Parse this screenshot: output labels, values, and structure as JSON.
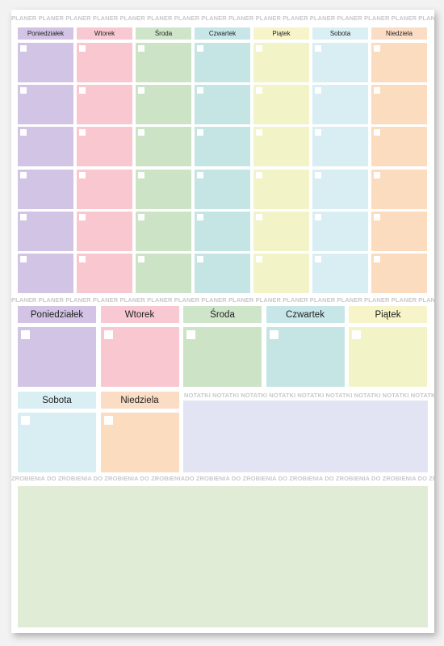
{
  "planner_band": "PLANER PLANER PLANER PLANER PLANER PLANER PLANER PLANER PLANER PLANER PLANER PLANER PLANER PLANER PLANER PLANER PLANER PLANER PLANER PLANER PLANER PLANER PLANER PLANER PLANER PLANER PLANER PLANER PLANER PLANER PLANER PLANER",
  "notes_band": "NOTATKI NOTATKI NOTATKI NOTATKI NOTATKI NOTATKI NOTATKI NOTATKI NOTATKI NOTATKI NOTATKI NOTATKI NOTATKI NOTATKI",
  "todo_band": "ZROBIENIA DO ZROBIENIA DO ZROBIENIA DO ZROBIENIADO ZROBIENIA DO ZROBIENIA DO ZROBIENIA DO ZROBIENIA DO ZROBIENIA DO ZROBIENIA",
  "days": [
    "Poniedziałek",
    "Wtorek",
    "Środa",
    "Czwartek",
    "Piątek",
    "Sobota",
    "Niedziela"
  ],
  "colors": {
    "header": [
      "#d3c4e6",
      "#f8c9d3",
      "#cfe5c9",
      "#c7e6e8",
      "#f6f4c8",
      "#daeff3",
      "#fbdcc4"
    ],
    "cell": [
      "#d2c4e4",
      "#f8c7cf",
      "#cde3c6",
      "#c4e5e4",
      "#f3f3c8",
      "#d9eef3",
      "#fbdcbf"
    ],
    "notes": "#e3e4f3",
    "todo": "#e1ecd6"
  },
  "weekly_rows": 6
}
